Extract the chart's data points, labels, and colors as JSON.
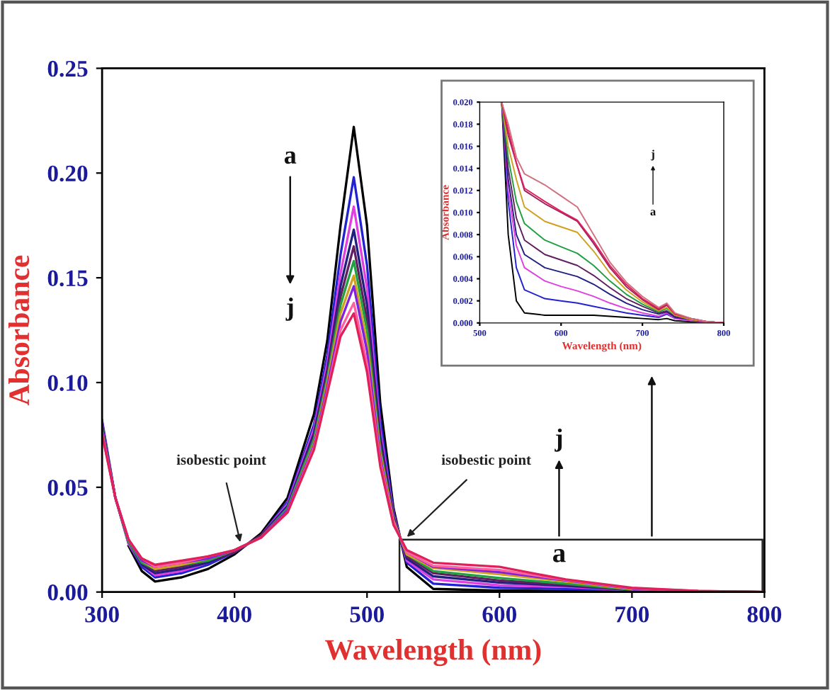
{
  "chart_data": [
    {
      "type": "line",
      "xlabel": "Wavelength (nm)",
      "ylabel": "Absorbance",
      "x": [
        300,
        310,
        320,
        330,
        340,
        360,
        380,
        400,
        420,
        440,
        460,
        470,
        480,
        490,
        500,
        510,
        520,
        530,
        550,
        600,
        650,
        700,
        750,
        800
      ],
      "xlim": [
        300,
        800
      ],
      "ylim": [
        0,
        0.25
      ],
      "xticks": [
        300,
        400,
        500,
        600,
        700,
        800
      ],
      "yticks": [
        {
          "value": 0,
          "label": "0.00"
        },
        {
          "value": 0.05,
          "label": "0.05"
        },
        {
          "value": 0.1,
          "label": "0.10"
        },
        {
          "value": 0.15,
          "label": "0.15"
        },
        {
          "value": 0.2,
          "label": "0.20"
        },
        {
          "value": 0.25,
          "label": "0.25"
        }
      ],
      "annotations": [
        "a",
        "j",
        {
          "text": "isobestic point",
          "x": 405,
          "y": 0.022
        },
        {
          "text": "isobestic point",
          "x": 528,
          "y": 0.025
        },
        "j",
        "a"
      ],
      "series": [
        {
          "color": "#000000",
          "values": [
            null,
            null,
            0.022,
            0.01,
            0.005,
            0.007,
            0.011,
            0.018,
            0.028,
            0.045,
            0.085,
            0.12,
            0.175,
            0.222,
            0.175,
            0.09,
            0.04,
            0.012,
            0.0015,
            0.0007,
            0.0005,
            0.0003,
            0.0001,
            0
          ]
        },
        {
          "color": "#2222d0",
          "values": [
            0.082,
            0.045,
            0.023,
            0.012,
            0.007,
            0.009,
            0.013,
            0.019,
            0.027,
            0.043,
            0.08,
            0.113,
            0.161,
            0.198,
            0.156,
            0.082,
            0.038,
            0.014,
            0.004,
            0.002,
            0.0015,
            0.0007,
            null,
            null
          ]
        },
        {
          "color": "#e040e0",
          "values": [
            0.081,
            0.045,
            0.023,
            0.013,
            0.008,
            0.01,
            0.014,
            0.019,
            0.027,
            0.042,
            0.078,
            0.109,
            0.152,
            0.184,
            0.145,
            0.077,
            0.037,
            0.015,
            0.006,
            0.0032,
            0.0025,
            0.0009,
            0.0002,
            0
          ]
        },
        {
          "color": "#202080",
          "values": [
            0.08,
            0.045,
            0.024,
            0.013,
            0.009,
            0.011,
            0.014,
            0.019,
            0.027,
            0.041,
            0.076,
            0.106,
            0.146,
            0.173,
            0.137,
            0.074,
            0.036,
            0.016,
            0.0075,
            0.0045,
            0.003,
            0.001,
            0.0003,
            0
          ]
        },
        {
          "color": "#602060",
          "values": [
            0.079,
            0.045,
            0.024,
            0.014,
            0.01,
            0.012,
            0.015,
            0.019,
            0.027,
            0.04,
            0.074,
            0.104,
            0.141,
            0.165,
            0.13,
            0.071,
            0.035,
            0.017,
            0.009,
            0.0055,
            0.0035,
            0.0011,
            0.0003,
            0
          ]
        },
        {
          "color": "#20a040",
          "values": [
            0.078,
            0.045,
            0.024,
            0.014,
            0.011,
            0.013,
            0.015,
            0.02,
            0.026,
            0.04,
            0.073,
            0.102,
            0.137,
            0.158,
            0.125,
            0.068,
            0.034,
            0.018,
            0.01,
            0.0067,
            0.004,
            0.0012,
            null,
            null
          ]
        },
        {
          "color": "#d0a020",
          "values": [
            null,
            null,
            0.025,
            0.015,
            0.011,
            0.013,
            0.016,
            0.02,
            0.026,
            0.039,
            0.071,
            0.1,
            0.133,
            0.151,
            0.119,
            0.066,
            0.034,
            0.018,
            0.0115,
            0.0085,
            0.005,
            0.0014,
            0.0004,
            0
          ]
        },
        {
          "color": "#8020e0",
          "values": [
            0.077,
            0.045,
            0.025,
            0.015,
            0.012,
            0.014,
            0.016,
            0.02,
            0.026,
            0.039,
            0.07,
            0.098,
            0.129,
            0.146,
            0.115,
            0.064,
            0.033,
            0.019,
            0.012,
            0.0095,
            0.0055,
            0.0016,
            0.0004,
            0
          ]
        },
        {
          "color": "#ff60a0",
          "values": [
            0.076,
            0.045,
            0.025,
            0.016,
            0.012,
            0.014,
            0.017,
            0.02,
            0.026,
            0.038,
            0.069,
            0.096,
            0.125,
            0.138,
            0.109,
            0.062,
            0.033,
            0.019,
            0.0125,
            0.0105,
            0.0058,
            0.0018,
            0.0005,
            0
          ]
        },
        {
          "color": "#e0205a",
          "values": [
            0.075,
            0.045,
            0.025,
            0.016,
            0.013,
            0.015,
            0.017,
            0.02,
            0.026,
            0.038,
            0.068,
            0.095,
            0.122,
            0.133,
            0.105,
            0.06,
            0.032,
            0.02,
            0.014,
            0.012,
            0.006,
            0.002,
            0.0005,
            0
          ]
        }
      ]
    },
    {
      "type": "line",
      "xlabel": "Wavelength (nm)",
      "ylabel": "Absorbance",
      "x": [
        527,
        535,
        545,
        555,
        580,
        600,
        620,
        640,
        660,
        680,
        700,
        720,
        730,
        740,
        760,
        780,
        800
      ],
      "xlim": [
        500,
        800
      ],
      "ylim": [
        0,
        0.02
      ],
      "xticks": [
        500,
        600,
        700,
        800
      ],
      "yticks": [
        {
          "value": 0,
          "label": "0.000"
        },
        {
          "value": 0.002,
          "label": "0.002"
        },
        {
          "value": 0.004,
          "label": "0.004"
        },
        {
          "value": 0.006,
          "label": "0.006"
        },
        {
          "value": 0.008,
          "label": "0.008"
        },
        {
          "value": 0.01,
          "label": "0.010"
        },
        {
          "value": 0.012,
          "label": "0.012"
        },
        {
          "value": 0.014,
          "label": "0.014"
        },
        {
          "value": 0.016,
          "label": "0.016"
        },
        {
          "value": 0.018,
          "label": "0.018"
        },
        {
          "value": 0.02,
          "label": "0.020"
        }
      ],
      "annotations": [
        "j",
        "a"
      ],
      "series": [
        {
          "color": "#000000",
          "values": [
            0.02,
            0.008,
            0.002,
            0.0009,
            0.0007,
            0.0007,
            0.0007,
            0.0007,
            0.0006,
            0.0005,
            0.0004,
            0.0003,
            0.0004,
            0.0002,
            0.0001,
            0.0001,
            0
          ]
        },
        {
          "color": "#2222d0",
          "values": [
            0.02,
            0.011,
            0.005,
            0.003,
            0.0022,
            0.002,
            0.0018,
            0.0015,
            0.0012,
            0.0009,
            0.0007,
            0.0005,
            0.0008,
            0.0004,
            0.0002,
            null,
            null
          ]
        },
        {
          "color": "#e040e0",
          "values": [
            0.02,
            0.012,
            0.007,
            0.005,
            0.0038,
            0.0033,
            0.0029,
            0.0024,
            0.0018,
            0.0013,
            0.0009,
            0.0006,
            0.0009,
            0.0004,
            0.0002,
            0.0001,
            0
          ]
        },
        {
          "color": "#202080",
          "values": [
            0.02,
            0.013,
            0.008,
            0.0062,
            0.005,
            0.0046,
            0.0042,
            0.0035,
            0.0026,
            0.0018,
            0.0012,
            0.0008,
            0.001,
            0.0005,
            0.0003,
            0.0001,
            0
          ]
        },
        {
          "color": "#602060",
          "values": [
            0.02,
            0.014,
            0.0095,
            0.0075,
            0.0062,
            0.0057,
            0.0052,
            0.0043,
            0.0032,
            0.0022,
            0.0015,
            0.0009,
            0.0011,
            0.0006,
            0.0003,
            0.0001,
            0
          ]
        },
        {
          "color": "#20a040",
          "values": [
            0.02,
            0.015,
            0.011,
            0.009,
            0.0075,
            0.0069,
            0.0063,
            0.0052,
            0.0038,
            0.0026,
            0.0017,
            0.001,
            0.0013,
            0.0007,
            0.0003,
            null,
            null
          ]
        },
        {
          "color": "#d0a020",
          "values": [
            0.02,
            0.016,
            0.013,
            0.0105,
            0.0092,
            0.0087,
            0.0082,
            0.0065,
            0.0045,
            0.003,
            0.0019,
            0.0011,
            0.0014,
            0.0007,
            0.0003,
            0.0001,
            0
          ]
        },
        {
          "color": "#a02060",
          "values": [
            0.02,
            0.017,
            0.0145,
            0.012,
            0.0108,
            0.01,
            0.0092,
            0.0072,
            0.005,
            0.0033,
            0.0021,
            0.0012,
            0.0016,
            0.0008,
            0.0004,
            0.0001,
            0
          ]
        },
        {
          "color": "#e0205a",
          "values": [
            0.02,
            0.0175,
            0.0145,
            0.0122,
            0.011,
            0.0101,
            0.0093,
            0.0074,
            0.0052,
            0.0035,
            0.0022,
            0.0013,
            0.0017,
            0.0008,
            0.0004,
            0.0001,
            0
          ]
        },
        {
          "color": "#d07080",
          "values": [
            0.02,
            0.018,
            0.015,
            0.0135,
            0.0125,
            0.0115,
            0.0105,
            0.008,
            0.0055,
            0.0037,
            0.0024,
            0.0014,
            0.0018,
            0.0009,
            0.0004,
            0.0001,
            0
          ]
        }
      ]
    }
  ]
}
